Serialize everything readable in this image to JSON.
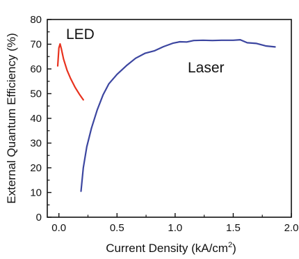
{
  "chart_data": {
    "type": "line",
    "title": "",
    "xlabel": "Current Density (kA/cm",
    "xlabel_superscript": "2",
    "xlabel_suffix": ")",
    "ylabel": "External Quantum Efficiency (%)",
    "xlim": [
      -0.1,
      2.0
    ],
    "ylim": [
      0,
      80
    ],
    "xticks": [
      0.0,
      0.5,
      1.0,
      1.5,
      2.0
    ],
    "xtick_labels": [
      "0.0",
      "0.5",
      "1.0",
      "1.5",
      "2.0"
    ],
    "yticks": [
      0,
      10,
      20,
      30,
      40,
      50,
      60,
      70,
      80
    ],
    "ytick_labels": [
      "0",
      "10",
      "20",
      "30",
      "40",
      "50",
      "60",
      "70",
      "80"
    ],
    "grid": false,
    "legend": "none",
    "series": [
      {
        "name": "LED",
        "color": "#e8321e",
        "points": [
          [
            -0.01,
            61.2
          ],
          [
            0.0,
            68.5
          ],
          [
            0.01,
            70.1
          ],
          [
            0.02,
            68.3
          ],
          [
            0.04,
            64.0
          ],
          [
            0.07,
            59.5
          ],
          [
            0.1,
            56.2
          ],
          [
            0.14,
            52.5
          ],
          [
            0.18,
            49.5
          ],
          [
            0.21,
            47.5
          ]
        ]
      },
      {
        "name": "Laser",
        "color": "#3c46a0",
        "points": [
          [
            0.19,
            10.5
          ],
          [
            0.21,
            20.0
          ],
          [
            0.24,
            28.5
          ],
          [
            0.28,
            36.0
          ],
          [
            0.33,
            43.5
          ],
          [
            0.38,
            49.5
          ],
          [
            0.43,
            54.0
          ],
          [
            0.5,
            57.8
          ],
          [
            0.58,
            61.3
          ],
          [
            0.66,
            64.3
          ],
          [
            0.74,
            66.3
          ],
          [
            0.82,
            67.3
          ],
          [
            0.9,
            69.0
          ],
          [
            0.98,
            70.4
          ],
          [
            1.04,
            71.0
          ],
          [
            1.1,
            70.9
          ],
          [
            1.16,
            71.5
          ],
          [
            1.24,
            71.6
          ],
          [
            1.32,
            71.5
          ],
          [
            1.4,
            71.6
          ],
          [
            1.5,
            71.6
          ],
          [
            1.56,
            71.8
          ],
          [
            1.62,
            70.6
          ],
          [
            1.7,
            70.3
          ],
          [
            1.78,
            69.3
          ],
          [
            1.86,
            68.9
          ]
        ]
      }
    ]
  }
}
